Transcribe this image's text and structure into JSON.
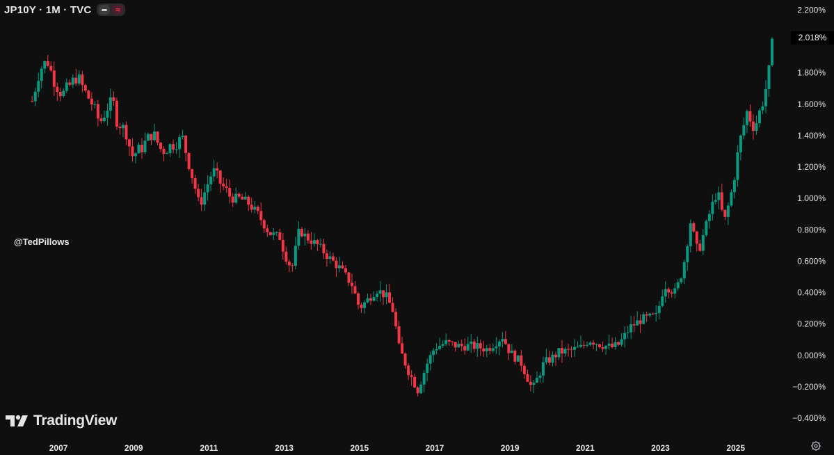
{
  "header": {
    "symbol": "JP10Y · 1M · TVC",
    "toggle_icons": [
      "minus-icon",
      "approx-icon"
    ],
    "toggle2_glyph": "≈"
  },
  "watermark": {
    "handle": "@TedPillows",
    "logo_text": "TradingView"
  },
  "price_badge": {
    "value": "2.018%",
    "color": "#000000"
  },
  "colors": {
    "up": "#089981",
    "down": "#f23645",
    "background": "#0f0f0f",
    "axis_text": "#e6e6e6"
  },
  "chart_data": {
    "type": "candlestick",
    "title": "JP10Y · 1M · TVC",
    "x_tick_labels": [
      "2007",
      "2009",
      "2011",
      "2013",
      "2015",
      "2017",
      "2019",
      "2021",
      "2023",
      "2025"
    ],
    "y_tick_labels": [
      "2.200%",
      "2.018%",
      "1.800%",
      "1.600%",
      "1.400%",
      "1.200%",
      "1.000%",
      "0.800%",
      "0.600%",
      "0.400%",
      "0.200%",
      "0.000%",
      "−0.200%",
      "−0.400%"
    ],
    "y_ticks": [
      2.2,
      1.8,
      1.6,
      1.4,
      1.2,
      1.0,
      0.8,
      0.6,
      0.4,
      0.2,
      0.0,
      -0.2,
      -0.4
    ],
    "ylim": [
      -0.44,
      2.22
    ],
    "xlim": [
      2006.0,
      2026.3
    ],
    "last_value": 2.018,
    "grid": false,
    "series_anchor_points": [
      [
        2006.3,
        1.62
      ],
      [
        2006.5,
        1.82
      ],
      [
        2006.7,
        1.88
      ],
      [
        2006.9,
        1.74
      ],
      [
        2007.1,
        1.66
      ],
      [
        2007.3,
        1.72
      ],
      [
        2007.5,
        1.78
      ],
      [
        2007.7,
        1.68
      ],
      [
        2007.9,
        1.6
      ],
      [
        2008.1,
        1.48
      ],
      [
        2008.3,
        1.58
      ],
      [
        2008.45,
        1.62
      ],
      [
        2008.55,
        1.5
      ],
      [
        2008.8,
        1.42
      ],
      [
        2008.95,
        1.27
      ],
      [
        2009.2,
        1.32
      ],
      [
        2009.5,
        1.42
      ],
      [
        2009.75,
        1.3
      ],
      [
        2010.0,
        1.34
      ],
      [
        2010.3,
        1.38
      ],
      [
        2010.6,
        1.1
      ],
      [
        2010.75,
        0.95
      ],
      [
        2010.9,
        1.05
      ],
      [
        2011.1,
        1.18
      ],
      [
        2011.3,
        1.1
      ],
      [
        2011.6,
        1.0
      ],
      [
        2011.8,
        1.0
      ],
      [
        2012.0,
        0.98
      ],
      [
        2012.3,
        0.9
      ],
      [
        2012.6,
        0.78
      ],
      [
        2012.9,
        0.75
      ],
      [
        2013.0,
        0.65
      ],
      [
        2013.2,
        0.55
      ],
      [
        2013.4,
        0.8
      ],
      [
        2013.6,
        0.75
      ],
      [
        2013.9,
        0.7
      ],
      [
        2014.2,
        0.62
      ],
      [
        2014.5,
        0.55
      ],
      [
        2014.8,
        0.45
      ],
      [
        2015.0,
        0.3
      ],
      [
        2015.2,
        0.35
      ],
      [
        2015.45,
        0.42
      ],
      [
        2015.7,
        0.38
      ],
      [
        2015.9,
        0.28
      ],
      [
        2016.05,
        0.05
      ],
      [
        2016.3,
        -0.1
      ],
      [
        2016.55,
        -0.22
      ],
      [
        2016.8,
        -0.05
      ],
      [
        2017.0,
        0.05
      ],
      [
        2017.3,
        0.08
      ],
      [
        2017.6,
        0.06
      ],
      [
        2018.0,
        0.06
      ],
      [
        2018.4,
        0.04
      ],
      [
        2018.8,
        0.12
      ],
      [
        2019.0,
        0.02
      ],
      [
        2019.3,
        -0.05
      ],
      [
        2019.6,
        -0.22
      ],
      [
        2019.9,
        -0.05
      ],
      [
        2020.1,
        -0.02
      ],
      [
        2020.3,
        0.02
      ],
      [
        2020.6,
        0.03
      ],
      [
        2020.9,
        0.05
      ],
      [
        2021.1,
        0.1
      ],
      [
        2021.4,
        0.07
      ],
      [
        2021.7,
        0.05
      ],
      [
        2021.9,
        0.07
      ],
      [
        2022.2,
        0.18
      ],
      [
        2022.5,
        0.23
      ],
      [
        2022.9,
        0.25
      ],
      [
        2023.1,
        0.45
      ],
      [
        2023.4,
        0.4
      ],
      [
        2023.6,
        0.55
      ],
      [
        2023.8,
        0.85
      ],
      [
        2024.0,
        0.65
      ],
      [
        2024.3,
        0.9
      ],
      [
        2024.5,
        1.05
      ],
      [
        2024.7,
        0.85
      ],
      [
        2024.9,
        1.05
      ],
      [
        2025.1,
        1.35
      ],
      [
        2025.3,
        1.55
      ],
      [
        2025.5,
        1.45
      ],
      [
        2025.7,
        1.6
      ],
      [
        2025.85,
        1.75
      ],
      [
        2026.0,
        2.018
      ]
    ]
  }
}
